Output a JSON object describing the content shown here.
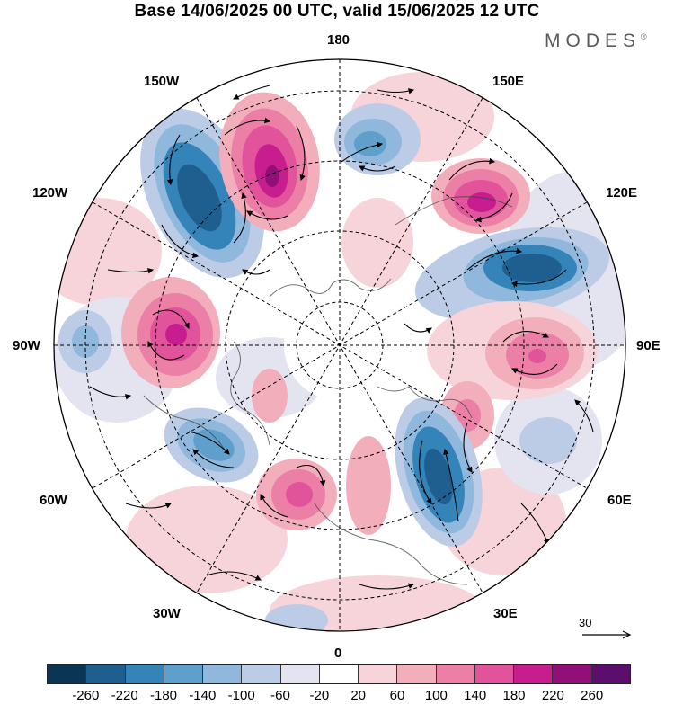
{
  "title": "Base 14/06/2025 00 UTC, valid 15/06/2025 12 UTC",
  "brand": {
    "name": "MODES",
    "mark": "®"
  },
  "longitude_labels": {
    "n180": "180",
    "w150": "150W",
    "e150": "150E",
    "w120": "120W",
    "e120": "120E",
    "w90": "90W",
    "e90": "90E",
    "w60": "60W",
    "e60": "60E",
    "w30": "30W",
    "e30": "30E",
    "s0": "0"
  },
  "reference_vector": {
    "label": "30"
  },
  "colorbar": {
    "colors": [
      "#0a3554",
      "#1f5f8f",
      "#3483b9",
      "#5f9fcc",
      "#8fb8dc",
      "#bccce6",
      "#e4e4f1",
      "#ffffff",
      "#f6d4d9",
      "#f2aebb",
      "#ec7fa6",
      "#e1539a",
      "#c81d8e",
      "#920f78",
      "#5b0e6b"
    ],
    "ticks": [
      "-260",
      "-220",
      "-180",
      "-140",
      "-100",
      "-60",
      "-20",
      "20",
      "60",
      "100",
      "140",
      "180",
      "220",
      "260"
    ]
  }
}
